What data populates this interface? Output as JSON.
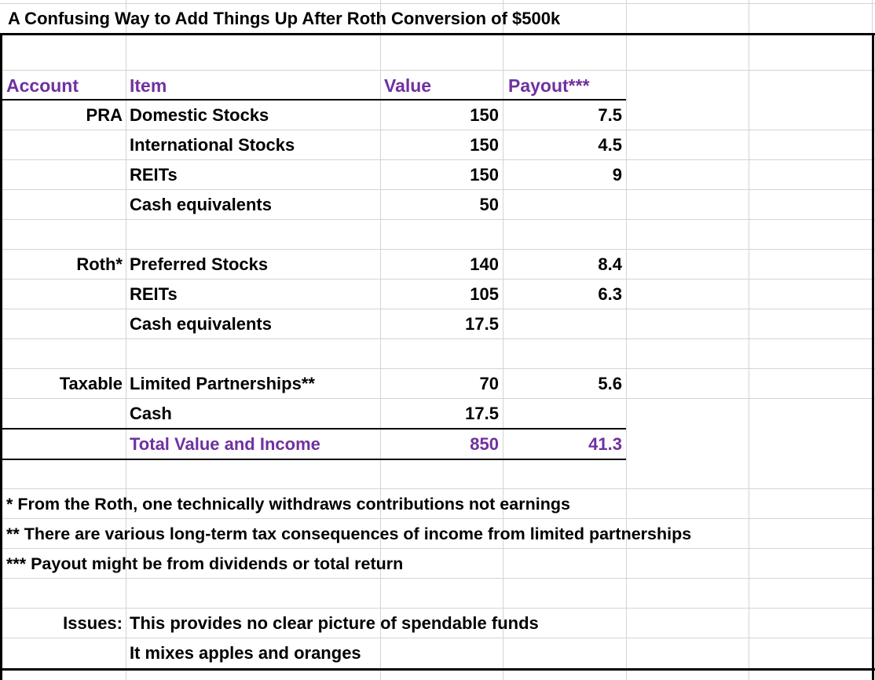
{
  "title": "A Confusing Way to Add Things Up After Roth Conversion of $500k",
  "headers": {
    "account": "Account",
    "item": "Item",
    "value": "Value",
    "payout": "Payout***"
  },
  "rows": [
    {
      "account": "PRA",
      "item": "Domestic Stocks",
      "value": "150",
      "payout": "7.5"
    },
    {
      "account": "",
      "item": "International Stocks",
      "value": "150",
      "payout": "4.5"
    },
    {
      "account": "",
      "item": "REITs",
      "value": "150",
      "payout": "9"
    },
    {
      "account": "",
      "item": "Cash equivalents",
      "value": "50",
      "payout": ""
    },
    {
      "account": "Roth*",
      "item": "Preferred Stocks",
      "value": "140",
      "payout": "8.4"
    },
    {
      "account": "",
      "item": "REITs",
      "value": "105",
      "payout": "6.3"
    },
    {
      "account": "",
      "item": "Cash equivalents",
      "value": "17.5",
      "payout": ""
    },
    {
      "account": "Taxable",
      "item": "Limited Partnerships**",
      "value": "70",
      "payout": "5.6"
    },
    {
      "account": "",
      "item": "Cash",
      "value": "17.5",
      "payout": ""
    }
  ],
  "total": {
    "label": "Total Value and Income",
    "value": "850",
    "payout": "41.3"
  },
  "footnotes": [
    "* From the Roth, one technically withdraws contributions not earnings",
    "** There are various long-term tax consequences of income from limited partnerships",
    "*** Payout might be from dividends or total return"
  ],
  "issues": {
    "label": "Issues:",
    "lines": [
      "This provides no clear picture of spendable funds",
      "It mixes apples and oranges"
    ]
  },
  "colors": {
    "accent": "#7030a0",
    "gridline": "#d4d4d4",
    "border": "#000000"
  }
}
